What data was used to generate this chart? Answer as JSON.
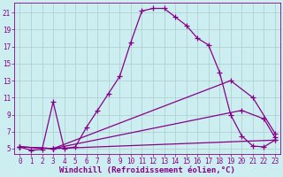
{
  "xlabel": "Windchill (Refroidissement éolien,°C)",
  "bg_color": "#cceef0",
  "line_color": "#880088",
  "grid_color": "#aacccc",
  "xlim": [
    -0.5,
    23.5
  ],
  "ylim": [
    4.4,
    22.2
  ],
  "xticks": [
    0,
    1,
    2,
    3,
    4,
    5,
    6,
    7,
    8,
    9,
    10,
    11,
    12,
    13,
    14,
    15,
    16,
    17,
    18,
    19,
    20,
    21,
    22,
    23
  ],
  "yticks": [
    5,
    7,
    9,
    11,
    13,
    15,
    17,
    19,
    21
  ],
  "line1_x": [
    0,
    1,
    2,
    3,
    4,
    5,
    6,
    7,
    8,
    9,
    10,
    11,
    12,
    13,
    14,
    15,
    16,
    17,
    18,
    19,
    20,
    21,
    22,
    23
  ],
  "line1_y": [
    5.2,
    4.8,
    4.9,
    10.5,
    5.0,
    5.2,
    7.5,
    9.5,
    11.5,
    13.5,
    17.5,
    21.2,
    21.5,
    21.5,
    20.5,
    19.5,
    18.0,
    17.2,
    14.0,
    9.0,
    6.5,
    5.3,
    5.2,
    6.0
  ],
  "line2_x": [
    0,
    3,
    19,
    21,
    23
  ],
  "line2_y": [
    5.2,
    5.0,
    13.0,
    11.0,
    6.8
  ],
  "line3_x": [
    0,
    3,
    20,
    22,
    23
  ],
  "line3_y": [
    5.2,
    5.0,
    9.5,
    8.5,
    6.3
  ],
  "line4_x": [
    0,
    3,
    23
  ],
  "line4_y": [
    5.2,
    5.0,
    6.0
  ],
  "xlabel_fontsize": 6.5,
  "tick_fontsize": 5.5
}
